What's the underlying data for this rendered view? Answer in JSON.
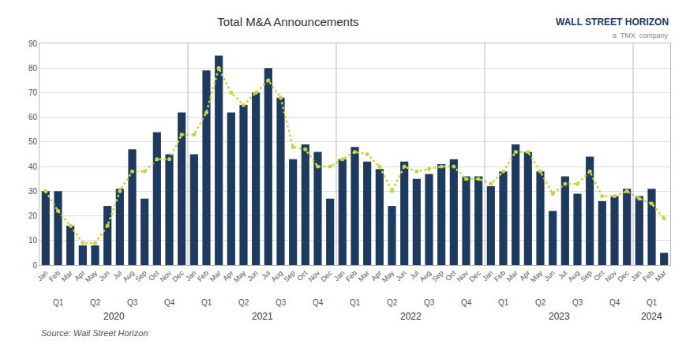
{
  "chart_data": {
    "type": "bar",
    "title": "Total M&A Announcements",
    "categories": [
      "Jan",
      "Feb",
      "Mar",
      "Apr",
      "May",
      "Jun",
      "Jul",
      "Aug",
      "Sep",
      "Oct",
      "Nov",
      "Dec",
      "Jan",
      "Feb",
      "Mar",
      "Apr",
      "May",
      "Jun",
      "Jul",
      "Aug",
      "Sep",
      "Oct",
      "Nov",
      "Dec",
      "Jan",
      "Feb",
      "Mar",
      "Apr",
      "May",
      "Jun",
      "Jul",
      "Aug",
      "Sep",
      "Oct",
      "Nov",
      "Dec",
      "Jan",
      "Feb",
      "Mar",
      "Apr",
      "May",
      "Jun",
      "Jul",
      "Aug",
      "Sep",
      "Oct",
      "Nov",
      "Dec",
      "Jan",
      "Feb",
      "Mar"
    ],
    "series": [
      {
        "type": "bar",
        "color": "#1e3a5f",
        "values": [
          30,
          30,
          16,
          8,
          8,
          24,
          31,
          47,
          27,
          54,
          45,
          62,
          45,
          79,
          85,
          62,
          65,
          70,
          80,
          68,
          43,
          49,
          46,
          27,
          43,
          48,
          42,
          39,
          24,
          42,
          35,
          37,
          41,
          43,
          36,
          36,
          32,
          38,
          49,
          46,
          38,
          22,
          36,
          29,
          44,
          26,
          28,
          31,
          28,
          31,
          5
        ]
      },
      {
        "type": "line",
        "color": "#c8d444",
        "line_style": "dotted",
        "marker": "circle",
        "values": [
          30,
          22,
          16,
          9,
          9,
          16,
          30,
          38,
          38,
          43,
          43,
          53,
          53,
          62,
          80,
          70,
          65,
          70,
          75,
          68,
          48,
          47,
          40,
          40,
          43,
          46,
          45,
          40,
          30,
          40,
          38,
          39,
          40,
          40,
          35,
          35,
          33,
          38,
          46,
          46,
          38,
          29,
          33,
          33,
          38,
          28,
          28,
          30,
          27,
          25,
          19
        ]
      }
    ],
    "ylim": [
      0,
      90
    ],
    "yticks": [
      0,
      10,
      20,
      30,
      40,
      50,
      60,
      70,
      80,
      90
    ],
    "grid": true,
    "annotations": [
      "Q1",
      "Q2",
      "Q3",
      "Q4",
      "Q1",
      "Q2",
      "Q3",
      "Q4",
      "Q1",
      "Q2",
      "Q3",
      "Q4",
      "Q1",
      "Q2",
      "Q3",
      "Q4",
      "Q1",
      "2020",
      "2021",
      "2022",
      "2023",
      "2024",
      "Source: Wall Street Horizon",
      "WALL STREET HORIZON",
      "a  TMX  company"
    ]
  }
}
